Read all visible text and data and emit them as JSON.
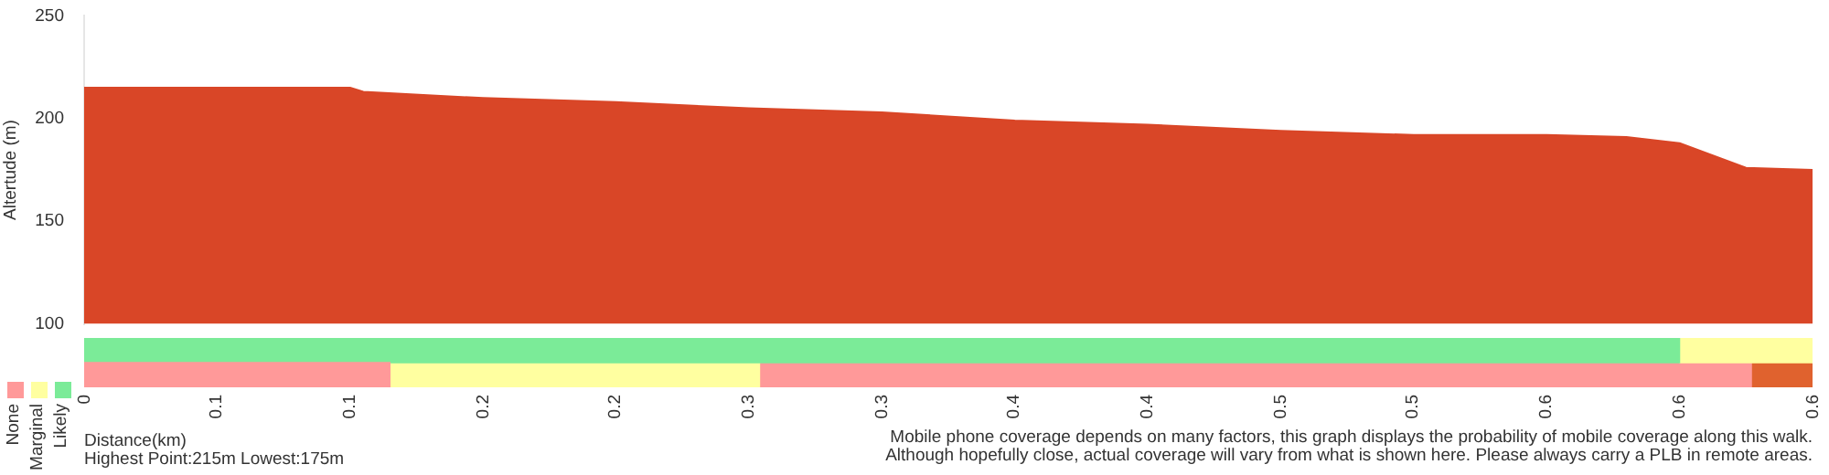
{
  "chart_data": [
    {
      "type": "area",
      "ylabel": "Altertude (m)",
      "x": [
        0,
        0.05,
        0.1,
        0.105,
        0.15,
        0.2,
        0.25,
        0.3,
        0.35,
        0.4,
        0.45,
        0.5,
        0.55,
        0.58,
        0.6,
        0.625,
        0.65
      ],
      "series": [
        {
          "color": "#d94627",
          "values": [
            215,
            215,
            215,
            213,
            210,
            208,
            205,
            203,
            199,
            197,
            194,
            192,
            192,
            191,
            188,
            176,
            175
          ]
        }
      ],
      "xlim": [
        0,
        0.65
      ],
      "ylim": [
        100,
        250
      ],
      "yticks": [
        100,
        150,
        200,
        250
      ],
      "tick_labels": "y"
    },
    {
      "type": "bar",
      "orientation": "horizontal",
      "xlabel": "Distance(km)",
      "categories": [
        null,
        null
      ],
      "stacked": true,
      "series": [
        {
          "colors": [
            "#7beb98",
            "#ff9999"
          ],
          "values": [
            0.6,
            0.115
          ]
        },
        {
          "colors": [
            "#ffffa0",
            "#ffffa0"
          ],
          "values": [
            0.05,
            0.139
          ]
        },
        {
          "colors": [
            "#ff9999",
            "#ff9999"
          ],
          "values": [
            0,
            0.373
          ]
        },
        {
          "colors": [
            "#e0622e",
            "#e0622e"
          ],
          "values": [
            0,
            0.023
          ]
        }
      ],
      "xlim": [
        0,
        0.65
      ],
      "xticks": [
        {
          "value": 0,
          "label": "0"
        },
        {
          "value": 0.05,
          "label": "0.1"
        },
        {
          "value": 0.1,
          "label": "0.1"
        },
        {
          "value": 0.15,
          "label": "0.2"
        },
        {
          "value": 0.2,
          "label": "0.2"
        },
        {
          "value": 0.25,
          "label": "0.3"
        },
        {
          "value": 0.3,
          "label": "0.3"
        },
        {
          "value": 0.35,
          "label": "0.4"
        },
        {
          "value": 0.4,
          "label": "0.4"
        },
        {
          "value": 0.45,
          "label": "0.5"
        },
        {
          "value": 0.5,
          "label": "0.5"
        },
        {
          "value": 0.55,
          "label": "0.6"
        },
        {
          "value": 0.6,
          "label": "0.6"
        },
        {
          "value": 0.65,
          "label": "0.6"
        }
      ],
      "tick_labels": "x",
      "annotations": [
        "None",
        "Marginal",
        "Likely",
        "Highest Point:215m Lowest:175m",
        "Mobile phone coverage depends on many factors, this graph displays the probability of mobile coverage along this walk.",
        "Although hopefully close, actual coverage will vary from what is shown here. Please always carry a PLB in remote areas."
      ]
    }
  ]
}
